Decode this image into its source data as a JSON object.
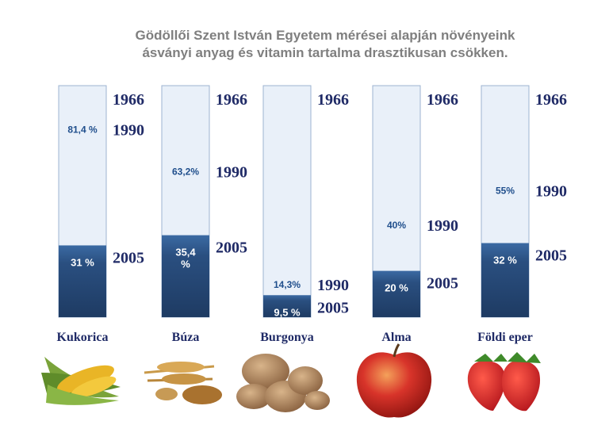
{
  "title": {
    "line1": "Gödöllői Szent István Egyetem mérései alapján növényeink",
    "line2": "ásványi anyag és vitamin tartalma drasztikusan csökken."
  },
  "colors": {
    "dark": "#2c4f7c",
    "light": "#e9f0f9",
    "label": "#1f2a66"
  },
  "chart_data": {
    "type": "bar",
    "categories": [
      "Kukorica",
      "Búza",
      "Burgonya",
      "Alma",
      "Földi eper"
    ],
    "years": [
      "1966",
      "1990",
      "2005"
    ],
    "series": [
      {
        "name": "1966",
        "values": [
          100,
          100,
          100,
          100,
          100
        ]
      },
      {
        "name": "1990",
        "values": [
          81.4,
          63.2,
          14.3,
          40,
          55
        ]
      },
      {
        "name": "2005",
        "values": [
          31,
          35.4,
          9.5,
          20,
          32
        ]
      }
    ],
    "labels_1990": [
      "81,4 %",
      "63,2%",
      "14,3%",
      "40%",
      "55%"
    ],
    "labels_2005": [
      "31 %",
      "35,4 %",
      "9,5 %",
      "20 %",
      "32 %"
    ],
    "ylim": [
      0,
      100
    ],
    "images": [
      "corn",
      "wheat",
      "potatoes",
      "apple",
      "strawberries"
    ]
  }
}
